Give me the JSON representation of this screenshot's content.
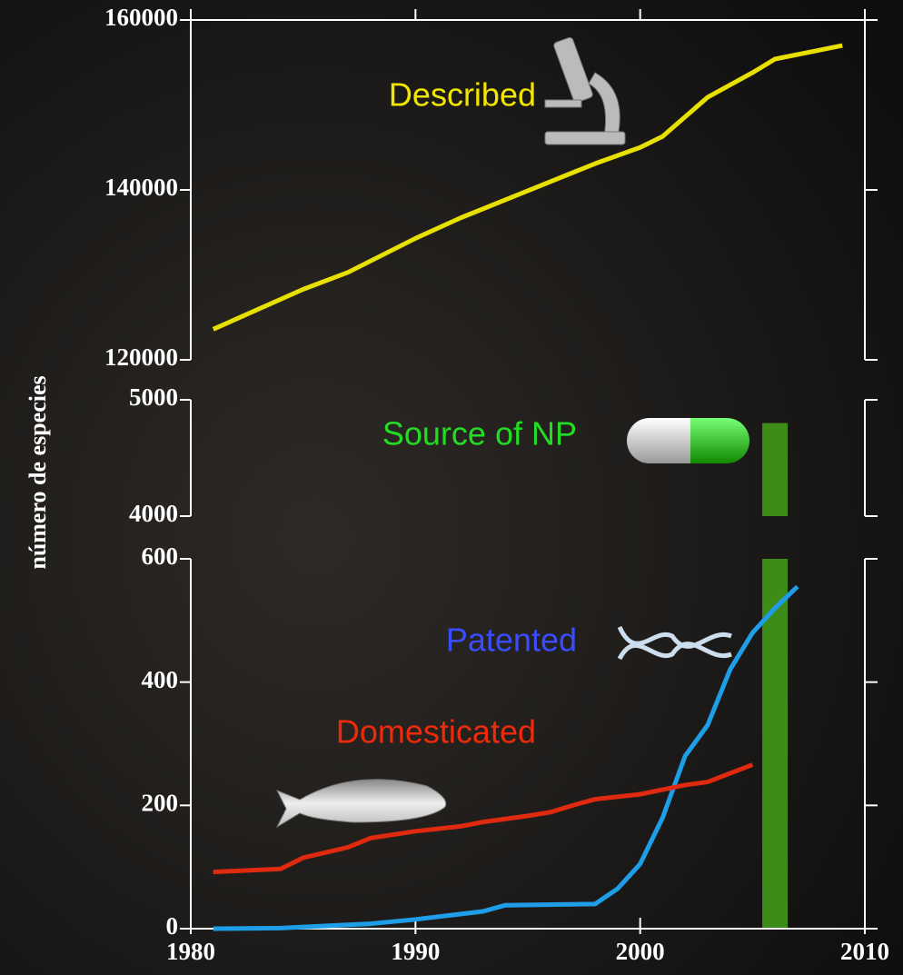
{
  "chart_data": [
    {
      "type": "line",
      "xlim": [
        1980,
        2010
      ],
      "ylim": [
        120000,
        160000
      ],
      "yticks": [
        120000,
        140000,
        160000
      ],
      "series": [
        {
          "name": "Described",
          "color": "#e8e000",
          "x": [
            1981,
            1985,
            1987,
            1990,
            1992,
            1995,
            1998,
            2000,
            2001,
            2003,
            2005,
            2006,
            2009
          ],
          "values": [
            123600,
            128300,
            130300,
            134300,
            136700,
            139900,
            143100,
            145000,
            146300,
            150900,
            153800,
            155400,
            157000
          ]
        }
      ]
    },
    {
      "type": "bar",
      "xlim": [
        1980,
        2010
      ],
      "ylim": [
        4000,
        5000
      ],
      "yticks": [
        4000,
        5000
      ],
      "ylabel": "número de especies",
      "series": [
        {
          "name": "Source of NP",
          "color": "#3d8c1a",
          "x": [
            2006
          ],
          "values": [
            4800
          ]
        }
      ]
    },
    {
      "type": "line",
      "xlim": [
        1980,
        2010
      ],
      "ylim": [
        0,
        600
      ],
      "yticks": [
        0,
        200,
        400,
        600
      ],
      "xticks": [
        1980,
        1990,
        2000,
        2010
      ],
      "series": [
        {
          "name": "Patented",
          "color": "#1e9ee8",
          "x": [
            1981,
            1984,
            1988,
            1990,
            1993,
            1994,
            1998,
            1999,
            2000,
            2001,
            2002,
            2003,
            2004,
            2005,
            2006,
            2007
          ],
          "values": [
            0,
            1,
            8,
            15,
            28,
            38,
            40,
            65,
            105,
            180,
            280,
            330,
            420,
            480,
            520,
            555
          ]
        },
        {
          "name": "Domesticated",
          "color": "#e02a10",
          "x": [
            1981,
            1984,
            1985,
            1987,
            1988,
            1990,
            1992,
            1993,
            1995,
            1996,
            1997,
            1998,
            2000,
            2002,
            2003,
            2004,
            2005
          ],
          "values": [
            92,
            97,
            115,
            132,
            147,
            158,
            166,
            173,
            183,
            189,
            200,
            210,
            218,
            233,
            238,
            252,
            266
          ]
        }
      ]
    }
  ]
}
